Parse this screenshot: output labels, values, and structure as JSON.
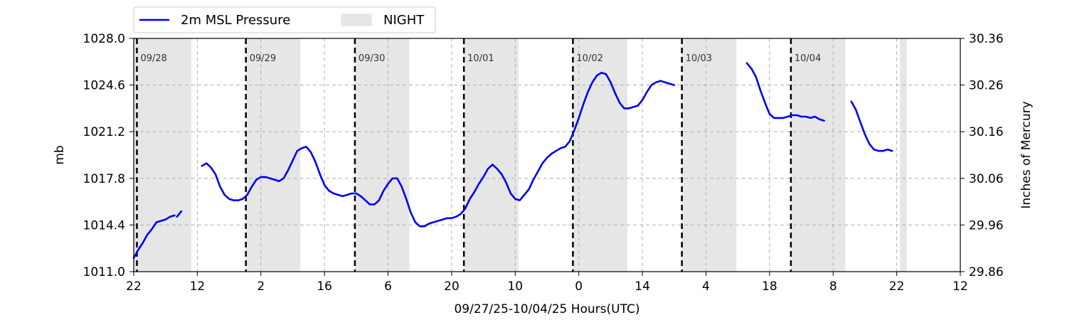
{
  "chart_data": {
    "type": "line",
    "xlabel": "09/27/25-10/04/25  Hours(UTC)",
    "ylabel": "mb",
    "ylabel_right": "Inches of Mercury",
    "xlim_hours": [
      0,
      182
    ],
    "ylim": [
      1011.0,
      1028.0
    ],
    "ylim_right": [
      29.86,
      30.36
    ],
    "x_tick_labels": [
      "22",
      "12",
      "2",
      "16",
      "6",
      "20",
      "10",
      "0",
      "14",
      "4",
      "18",
      "8",
      "22",
      "12"
    ],
    "y_tick_labels": [
      "1011.0",
      "1014.4",
      "1017.8",
      "1021.2",
      "1024.6",
      "1028.0"
    ],
    "y_right_tick_labels": [
      "29.86",
      "29.96",
      "30.06",
      "30.16",
      "30.26",
      "30.36"
    ],
    "grid": true,
    "legend_position": "top-left outside",
    "legend": [
      {
        "label": "2m MSL Pressure",
        "color": "#0000ee",
        "kind": "line"
      },
      {
        "label": "NIGHT",
        "color": "#e6e6e6",
        "kind": "patch"
      }
    ],
    "day_markers": [
      {
        "hour": 0.7,
        "label": "09/28"
      },
      {
        "hour": 24.7,
        "label": "09/29"
      },
      {
        "hour": 48.7,
        "label": "09/30"
      },
      {
        "hour": 72.7,
        "label": "10/01"
      },
      {
        "hour": 96.7,
        "label": "10/02"
      },
      {
        "hour": 120.7,
        "label": "10/03"
      },
      {
        "hour": 144.7,
        "label": "10/04"
      }
    ],
    "night_bands": [
      [
        0.0,
        12.7
      ],
      [
        24.7,
        36.7
      ],
      [
        48.7,
        60.7
      ],
      [
        72.7,
        84.7
      ],
      [
        96.7,
        108.7
      ],
      [
        120.7,
        132.7
      ],
      [
        144.7,
        156.7
      ],
      [
        168.7,
        170.2
      ]
    ],
    "series": [
      {
        "name": "2m MSL Pressure",
        "color": "#0000ee",
        "segments": [
          [
            [
              0,
              1012.0
            ],
            [
              1,
              1012.6
            ],
            [
              2,
              1013.1
            ],
            [
              3,
              1013.7
            ],
            [
              4,
              1014.1
            ],
            [
              5,
              1014.6
            ],
            [
              6,
              1014.7
            ],
            [
              7,
              1014.8
            ],
            [
              8,
              1015.0
            ],
            [
              9,
              1015.1
            ]
          ],
          [
            [
              9.5,
              1015.0
            ],
            [
              10,
              1015.2
            ],
            [
              10.5,
              1015.4
            ]
          ],
          [
            [
              15,
              1018.7
            ],
            [
              16,
              1018.9
            ],
            [
              17,
              1018.6
            ],
            [
              18,
              1018.1
            ],
            [
              19,
              1017.2
            ],
            [
              20,
              1016.6
            ],
            [
              21,
              1016.3
            ],
            [
              22,
              1016.2
            ],
            [
              23,
              1016.2
            ],
            [
              24,
              1016.3
            ],
            [
              25,
              1016.6
            ],
            [
              26,
              1017.2
            ],
            [
              27,
              1017.7
            ],
            [
              28,
              1017.9
            ],
            [
              29,
              1017.9
            ],
            [
              30,
              1017.8
            ],
            [
              31,
              1017.7
            ],
            [
              32,
              1017.6
            ],
            [
              33,
              1017.8
            ],
            [
              34,
              1018.4
            ],
            [
              35,
              1019.1
            ],
            [
              36,
              1019.8
            ],
            [
              37,
              1020.0
            ],
            [
              38,
              1020.1
            ],
            [
              39,
              1019.7
            ],
            [
              40,
              1019.0
            ],
            [
              41,
              1018.1
            ],
            [
              42,
              1017.3
            ],
            [
              43,
              1016.9
            ],
            [
              44,
              1016.7
            ],
            [
              45,
              1016.6
            ],
            [
              46,
              1016.5
            ],
            [
              47,
              1016.6
            ],
            [
              48,
              1016.7
            ],
            [
              49,
              1016.7
            ],
            [
              50,
              1016.5
            ],
            [
              51,
              1016.2
            ],
            [
              52,
              1015.9
            ],
            [
              53,
              1015.9
            ],
            [
              54,
              1016.2
            ],
            [
              55,
              1016.9
            ],
            [
              56,
              1017.4
            ],
            [
              57,
              1017.8
            ],
            [
              58,
              1017.8
            ],
            [
              59,
              1017.2
            ],
            [
              60,
              1016.3
            ],
            [
              61,
              1015.3
            ],
            [
              62,
              1014.6
            ],
            [
              63,
              1014.3
            ],
            [
              64,
              1014.3
            ],
            [
              65,
              1014.5
            ],
            [
              66,
              1014.6
            ],
            [
              67,
              1014.7
            ],
            [
              68,
              1014.8
            ],
            [
              69,
              1014.9
            ],
            [
              70,
              1014.9
            ],
            [
              71,
              1015.0
            ],
            [
              72,
              1015.2
            ],
            [
              73,
              1015.6
            ],
            [
              74,
              1016.3
            ],
            [
              75,
              1016.8
            ],
            [
              76,
              1017.4
            ],
            [
              77,
              1017.9
            ],
            [
              78,
              1018.5
            ],
            [
              79,
              1018.8
            ],
            [
              80,
              1018.5
            ],
            [
              81,
              1018.1
            ],
            [
              82,
              1017.5
            ],
            [
              83,
              1016.7
            ],
            [
              84,
              1016.3
            ],
            [
              85,
              1016.2
            ],
            [
              86,
              1016.6
            ],
            [
              87,
              1017.0
            ],
            [
              88,
              1017.7
            ],
            [
              89,
              1018.3
            ],
            [
              90,
              1018.9
            ],
            [
              91,
              1019.3
            ],
            [
              92,
              1019.6
            ],
            [
              93,
              1019.8
            ],
            [
              94,
              1020.0
            ],
            [
              95,
              1020.1
            ],
            [
              96,
              1020.5
            ],
            [
              97,
              1021.3
            ],
            [
              98,
              1022.2
            ],
            [
              99,
              1023.2
            ],
            [
              100,
              1024.1
            ],
            [
              101,
              1024.8
            ],
            [
              102,
              1025.3
            ],
            [
              103,
              1025.5
            ],
            [
              104,
              1025.4
            ],
            [
              105,
              1024.8
            ],
            [
              106,
              1024.0
            ],
            [
              107,
              1023.3
            ],
            [
              108,
              1022.9
            ],
            [
              109,
              1022.9
            ],
            [
              110,
              1023.0
            ],
            [
              111,
              1023.1
            ],
            [
              112,
              1023.5
            ],
            [
              113,
              1024.1
            ],
            [
              114,
              1024.6
            ],
            [
              115,
              1024.8
            ],
            [
              116,
              1024.9
            ],
            [
              117,
              1024.8
            ],
            [
              118,
              1024.7
            ],
            [
              119,
              1024.6
            ]
          ],
          [
            [
              135,
              1026.2
            ],
            [
              136,
              1025.8
            ],
            [
              137,
              1025.2
            ],
            [
              138,
              1024.2
            ],
            [
              139,
              1023.3
            ],
            [
              140,
              1022.5
            ],
            [
              141,
              1022.2
            ],
            [
              142,
              1022.2
            ],
            [
              143,
              1022.2
            ],
            [
              144,
              1022.3
            ],
            [
              145,
              1022.4
            ],
            [
              146,
              1022.4
            ],
            [
              147,
              1022.3
            ],
            [
              148,
              1022.3
            ],
            [
              149,
              1022.2
            ],
            [
              150,
              1022.3
            ],
            [
              151,
              1022.1
            ],
            [
              152,
              1022.0
            ]
          ],
          [
            [
              158,
              1023.4
            ],
            [
              159,
              1022.8
            ],
            [
              160,
              1021.9
            ],
            [
              161,
              1021.0
            ],
            [
              162,
              1020.3
            ],
            [
              163,
              1019.9
            ],
            [
              164,
              1019.8
            ],
            [
              165,
              1019.8
            ],
            [
              166,
              1019.9
            ],
            [
              167,
              1019.8
            ]
          ]
        ]
      }
    ]
  }
}
